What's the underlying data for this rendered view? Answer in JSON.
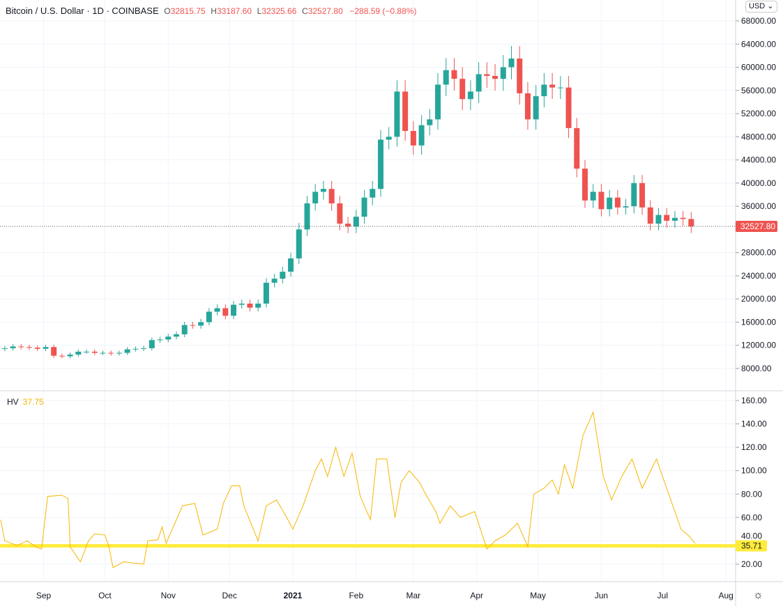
{
  "header": {
    "title": "Bitcoin / U.S. Dollar · 1D · COINBASE",
    "o": "32815.75",
    "h": "33187.60",
    "l": "32325.66",
    "c": "32527.80",
    "change": "−288.59 (−0.88%)"
  },
  "currency": "USD",
  "chart_data": [
    {
      "type": "candlestick",
      "title": "Bitcoin / U.S. Dollar",
      "interval_days": 4,
      "start_date": "2020-08-11",
      "close": [
        11500,
        11800,
        11700,
        11600,
        11400,
        11700,
        10200,
        10100,
        10400,
        10900,
        10900,
        10700,
        10700,
        10600,
        10700,
        11300,
        11400,
        11500,
        12900,
        13000,
        13500,
        13900,
        15500,
        15400,
        16000,
        17800,
        18400,
        17100,
        19000,
        19200,
        18500,
        19200,
        22800,
        23500,
        24700,
        27000,
        32000,
        36500,
        38500,
        39000,
        36500,
        33000,
        32500,
        34200,
        37500,
        39000,
        47500,
        48000,
        55800,
        49000,
        46500,
        50000,
        51000,
        57000,
        59500,
        58000,
        54500,
        55800,
        58800,
        58500,
        58000,
        60000,
        61500,
        55500,
        51000,
        55000,
        57000,
        56500,
        56500,
        49500,
        42500,
        37000,
        38500,
        35500,
        37500,
        35800,
        36000,
        40000,
        35800,
        33000,
        34500,
        33500,
        34000,
        33800,
        32527.8
      ],
      "ylim": [
        6000,
        70000
      ],
      "yticks": [
        "68000.00",
        "64000.00",
        "60000.00",
        "56000.00",
        "52000.00",
        "48000.00",
        "44000.00",
        "40000.00",
        "36000.00",
        "28000.00",
        "24000.00",
        "20000.00",
        "16000.00",
        "12000.00",
        "8000.00"
      ],
      "last_price": "32527.80",
      "up_color": "#26a69a",
      "down_color": "#ef5350"
    },
    {
      "type": "line",
      "name": "HV",
      "value_label": "37.75",
      "start_date": "2020-08-11",
      "points": [
        [
          0,
          58
        ],
        [
          2,
          40
        ],
        [
          8,
          36
        ],
        [
          13,
          40
        ],
        [
          17,
          35
        ],
        [
          20,
          33
        ],
        [
          23,
          78
        ],
        [
          30,
          79
        ],
        [
          33,
          76
        ],
        [
          34,
          35
        ],
        [
          39,
          22
        ],
        [
          43,
          40
        ],
        [
          46,
          46
        ],
        [
          51,
          45
        ],
        [
          53,
          35
        ],
        [
          55,
          17
        ],
        [
          60,
          22
        ],
        [
          70,
          20
        ],
        [
          72,
          40
        ],
        [
          77,
          41
        ],
        [
          79,
          52
        ],
        [
          81,
          38
        ],
        [
          89,
          70
        ],
        [
          95,
          72
        ],
        [
          99,
          45
        ],
        [
          106,
          50
        ],
        [
          109,
          72
        ],
        [
          113,
          87
        ],
        [
          117,
          87
        ],
        [
          119,
          70
        ],
        [
          126,
          40
        ],
        [
          130,
          70
        ],
        [
          135,
          75
        ],
        [
          140,
          60
        ],
        [
          143,
          50
        ],
        [
          148,
          70
        ],
        [
          154,
          100
        ],
        [
          157,
          110
        ],
        [
          160,
          95
        ],
        [
          164,
          120
        ],
        [
          168,
          95
        ],
        [
          172,
          115
        ],
        [
          176,
          78
        ],
        [
          181,
          58
        ],
        [
          184,
          110
        ],
        [
          189,
          110
        ],
        [
          193,
          60
        ],
        [
          196,
          90
        ],
        [
          200,
          100
        ],
        [
          205,
          90
        ],
        [
          208,
          80
        ],
        [
          213,
          65
        ],
        [
          215,
          55
        ],
        [
          220,
          70
        ],
        [
          225,
          60
        ],
        [
          232,
          65
        ],
        [
          238,
          33
        ],
        [
          242,
          40
        ],
        [
          247,
          45
        ],
        [
          253,
          55
        ],
        [
          258,
          35
        ],
        [
          261,
          80
        ],
        [
          266,
          85
        ],
        [
          270,
          92
        ],
        [
          273,
          80
        ],
        [
          276,
          105
        ],
        [
          280,
          85
        ],
        [
          285,
          130
        ],
        [
          290,
          150
        ],
        [
          295,
          95
        ],
        [
          299,
          75
        ],
        [
          304,
          95
        ],
        [
          309,
          110
        ],
        [
          314,
          85
        ],
        [
          321,
          110
        ],
        [
          326,
          85
        ],
        [
          329,
          70
        ],
        [
          333,
          50
        ],
        [
          337,
          44
        ],
        [
          340,
          37.75
        ]
      ],
      "ylim": [
        8,
        168
      ],
      "yticks": [
        "160.00",
        "140.00",
        "120.00",
        "100.00",
        "80.00",
        "60.00",
        "40.00",
        "20.00"
      ],
      "level": "35.71",
      "line_color": "#f7b500",
      "level_color": "#ffeb3b"
    }
  ],
  "xaxis": {
    "labels": [
      {
        "t": "Sep",
        "day": 21
      },
      {
        "t": "Oct",
        "day": 51
      },
      {
        "t": "Nov",
        "day": 82
      },
      {
        "t": "Dec",
        "day": 112
      },
      {
        "t": "2021",
        "day": 143
      },
      {
        "t": "Feb",
        "day": 174
      },
      {
        "t": "Mar",
        "day": 202
      },
      {
        "t": "Apr",
        "day": 233
      },
      {
        "t": "May",
        "day": 263
      },
      {
        "t": "Jun",
        "day": 294
      },
      {
        "t": "Jul",
        "day": 324
      },
      {
        "t": "Aug",
        "day": 355
      }
    ]
  }
}
